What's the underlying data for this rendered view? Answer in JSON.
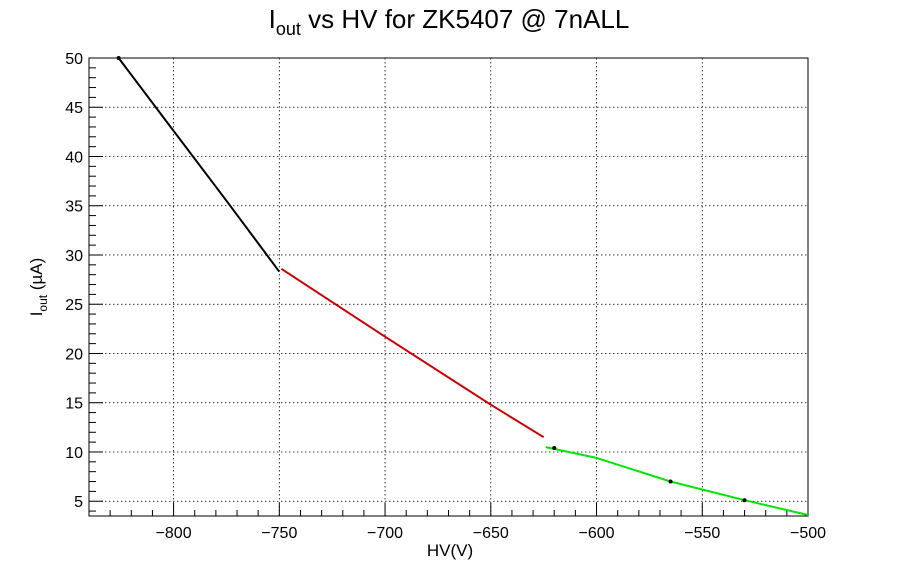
{
  "chart_data": {
    "type": "line",
    "title": {
      "main": "I",
      "subscript": "out",
      "rest": " vs HV for ZK5407 @ 7nALL"
    },
    "xlabel": "HV(V)",
    "ylabel": {
      "main": "I",
      "subscript": "out",
      "rest": " (µA)"
    },
    "xlim": [
      -840,
      -500
    ],
    "ylim": [
      3.5,
      50
    ],
    "x_ticks": [
      -800,
      -750,
      -700,
      -650,
      -600,
      -550,
      -500
    ],
    "x_tick_labels": [
      "−800",
      "−750",
      "−700",
      "−650",
      "−600",
      "−550",
      "−500"
    ],
    "y_ticks": [
      5,
      10,
      15,
      20,
      25,
      30,
      35,
      40,
      45,
      50
    ],
    "y_tick_labels": [
      "5",
      "10",
      "15",
      "20",
      "25",
      "30",
      "35",
      "40",
      "45",
      "50"
    ],
    "grid": true,
    "series": [
      {
        "color": "#000000",
        "x": [
          -826,
          -800,
          -775,
          -750
        ],
        "y": [
          50.0,
          42.6,
          35.5,
          28.3
        ]
      },
      {
        "color": "#cc0000",
        "x": [
          -749,
          -700,
          -650,
          -625
        ],
        "y": [
          28.6,
          21.7,
          14.8,
          11.5
        ]
      },
      {
        "color": "#00e600",
        "x": [
          -624,
          -600,
          -565,
          -530,
          -500
        ],
        "y": [
          10.5,
          9.4,
          7.0,
          5.1,
          3.6
        ]
      }
    ],
    "markers": [
      {
        "x": -826,
        "y": 50.0
      },
      {
        "x": -620,
        "y": 10.4
      },
      {
        "x": -565,
        "y": 7.0
      },
      {
        "x": -530,
        "y": 5.1
      }
    ]
  }
}
